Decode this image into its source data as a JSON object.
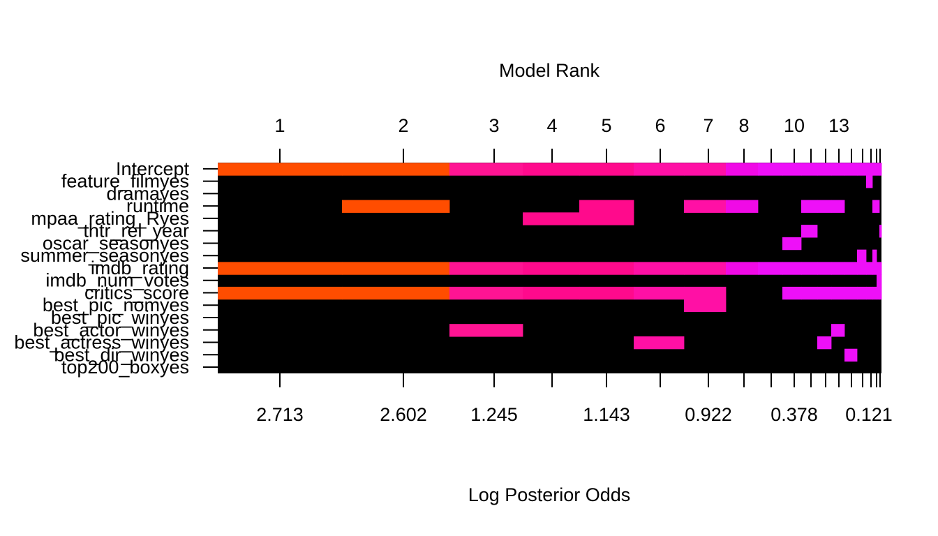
{
  "chart_data": {
    "type": "heatmap",
    "title": "Model Rank",
    "xlabel": "Log Posterior Odds",
    "top_tick_labels": [
      "1",
      "2",
      "3",
      "4",
      "5",
      "6",
      "7",
      "8",
      "10",
      "13"
    ],
    "bottom_tick_labels": [
      "2.713",
      "2.602",
      "1.245",
      "1.143",
      "0.922",
      "0.378",
      "0.121"
    ],
    "variables": [
      "Intercept",
      "feature_filmyes",
      "dramayes",
      "runtime",
      "mpaa_rating_Ryes",
      "thtr_rel_year",
      "oscar_seasonyes",
      "summer_seasonyes",
      "imdb_rating",
      "imdb_num_votes",
      "critics_score",
      "best_pic_nomyes",
      "best_pic_winyes",
      "best_actor_winyes",
      "best_actress_winyes",
      "best_dir_winyes",
      "top200_boxyes"
    ],
    "colors": {
      "background": "#000000",
      "rank1": "#FF4D00",
      "rank3": "#FF1493",
      "rank4": "#FF0A8C",
      "rank6": "#FF10A5",
      "rank8": "#F00AE6",
      "tail": "#EE10F8"
    }
  }
}
